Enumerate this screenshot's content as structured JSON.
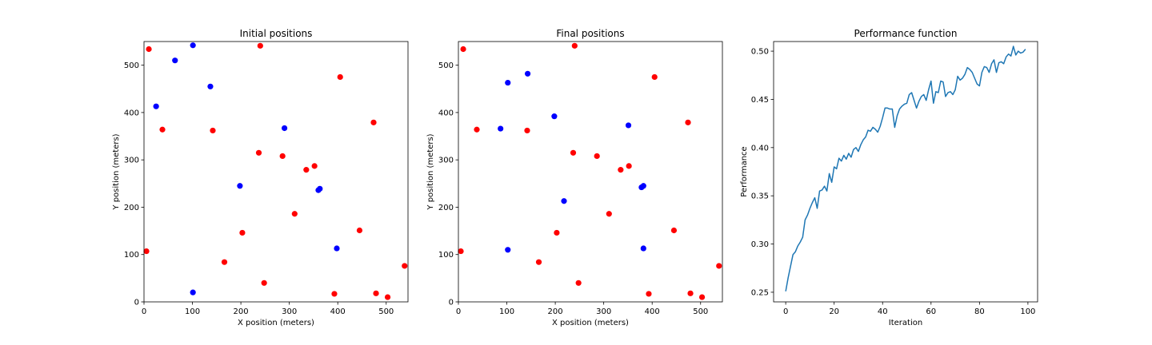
{
  "chart_data": [
    {
      "type": "scatter",
      "title": "Initial positions",
      "xlabel": "X position (meters)",
      "ylabel": "Y position (meters)",
      "xlim": [
        0,
        545
      ],
      "ylim": [
        0,
        550
      ],
      "xticks": [
        0,
        100,
        200,
        300,
        400,
        500
      ],
      "yticks": [
        0,
        100,
        200,
        300,
        400,
        500
      ],
      "grid": false,
      "series": [
        {
          "color": "#ff0000",
          "points": [
            [
              10,
              534
            ],
            [
              240,
              541
            ],
            [
              405,
              475
            ],
            [
              38,
              364
            ],
            [
              142,
              362
            ],
            [
              474,
              379
            ],
            [
              237,
              315
            ],
            [
              286,
              308
            ],
            [
              352,
              287
            ],
            [
              335,
              279
            ],
            [
              311,
              186
            ],
            [
              445,
              151
            ],
            [
              203,
              146
            ],
            [
              5,
              107
            ],
            [
              166,
              84
            ],
            [
              538,
              76
            ],
            [
              248,
              40
            ],
            [
              393,
              17
            ],
            [
              479,
              18
            ],
            [
              503,
              10
            ]
          ]
        },
        {
          "color": "#0000ff",
          "points": [
            [
              101,
              542
            ],
            [
              64,
              510
            ],
            [
              137,
              455
            ],
            [
              25,
              413
            ],
            [
              290,
              367
            ],
            [
              360,
              236
            ],
            [
              363,
              239
            ],
            [
              198,
              245
            ],
            [
              398,
              113
            ],
            [
              101,
              20
            ]
          ]
        }
      ]
    },
    {
      "type": "scatter",
      "title": "Final positions",
      "xlabel": "X position (meters)",
      "ylabel": "Y position (meters)",
      "xlim": [
        0,
        545
      ],
      "ylim": [
        0,
        550
      ],
      "xticks": [
        0,
        100,
        200,
        300,
        400,
        500
      ],
      "yticks": [
        0,
        100,
        200,
        300,
        400,
        500
      ],
      "grid": false,
      "series": [
        {
          "color": "#ff0000",
          "points": [
            [
              10,
              534
            ],
            [
              240,
              541
            ],
            [
              405,
              475
            ],
            [
              38,
              364
            ],
            [
              142,
              362
            ],
            [
              474,
              379
            ],
            [
              237,
              315
            ],
            [
              286,
              308
            ],
            [
              352,
              287
            ],
            [
              335,
              279
            ],
            [
              311,
              186
            ],
            [
              445,
              151
            ],
            [
              203,
              146
            ],
            [
              5,
              107
            ],
            [
              166,
              84
            ],
            [
              538,
              76
            ],
            [
              248,
              40
            ],
            [
              393,
              17
            ],
            [
              479,
              18
            ],
            [
              503,
              10
            ]
          ]
        },
        {
          "color": "#0000ff",
          "points": [
            [
              102,
              463
            ],
            [
              143,
              482
            ],
            [
              87,
              366
            ],
            [
              198,
              392
            ],
            [
              351,
              373
            ],
            [
              378,
              242
            ],
            [
              382,
              245
            ],
            [
              218,
              213
            ],
            [
              102,
              110
            ],
            [
              382,
              113
            ]
          ]
        }
      ]
    },
    {
      "type": "line",
      "title": "Performance function",
      "xlabel": "Iteration",
      "ylabel": "Performance",
      "xlim": [
        -5,
        104
      ],
      "ylim": [
        0.24,
        0.51
      ],
      "xticks": [
        0,
        20,
        40,
        60,
        80,
        100
      ],
      "yticks": [
        0.25,
        0.3,
        0.35,
        0.4,
        0.45,
        0.5
      ],
      "ytick_labels": [
        "0.25",
        "0.30",
        "0.35",
        "0.40",
        "0.45",
        "0.50"
      ],
      "grid": false,
      "series": [
        {
          "color": "#1f77b4",
          "x": [
            0,
            1,
            2,
            3,
            4,
            5,
            6,
            7,
            8,
            9,
            10,
            11,
            12,
            13,
            14,
            15,
            16,
            17,
            18,
            19,
            20,
            21,
            22,
            23,
            24,
            25,
            26,
            27,
            28,
            29,
            30,
            31,
            32,
            33,
            34,
            35,
            36,
            37,
            38,
            39,
            40,
            41,
            42,
            43,
            44,
            45,
            46,
            47,
            48,
            49,
            50,
            51,
            52,
            53,
            54,
            55,
            56,
            57,
            58,
            59,
            60,
            61,
            62,
            63,
            64,
            65,
            66,
            67,
            68,
            69,
            70,
            71,
            72,
            73,
            74,
            75,
            76,
            77,
            78,
            79,
            80,
            81,
            82,
            83,
            84,
            85,
            86,
            87,
            88,
            89,
            90,
            91,
            92,
            93,
            94,
            95,
            96,
            97,
            98,
            99
          ],
          "y": [
            0.251,
            0.265,
            0.277,
            0.289,
            0.292,
            0.298,
            0.302,
            0.307,
            0.325,
            0.33,
            0.337,
            0.343,
            0.348,
            0.337,
            0.355,
            0.356,
            0.36,
            0.355,
            0.373,
            0.364,
            0.38,
            0.378,
            0.389,
            0.386,
            0.392,
            0.388,
            0.394,
            0.39,
            0.398,
            0.4,
            0.396,
            0.403,
            0.408,
            0.411,
            0.418,
            0.417,
            0.421,
            0.419,
            0.416,
            0.422,
            0.431,
            0.441,
            0.441,
            0.44,
            0.44,
            0.421,
            0.433,
            0.44,
            0.443,
            0.445,
            0.446,
            0.455,
            0.457,
            0.449,
            0.441,
            0.448,
            0.453,
            0.455,
            0.449,
            0.46,
            0.469,
            0.446,
            0.458,
            0.457,
            0.469,
            0.468,
            0.453,
            0.457,
            0.458,
            0.455,
            0.46,
            0.474,
            0.47,
            0.472,
            0.476,
            0.483,
            0.481,
            0.478,
            0.472,
            0.466,
            0.464,
            0.478,
            0.484,
            0.483,
            0.478,
            0.487,
            0.491,
            0.478,
            0.488,
            0.489,
            0.487,
            0.494,
            0.497,
            0.495,
            0.505,
            0.496,
            0.5,
            0.498,
            0.499,
            0.502
          ]
        }
      ]
    }
  ]
}
